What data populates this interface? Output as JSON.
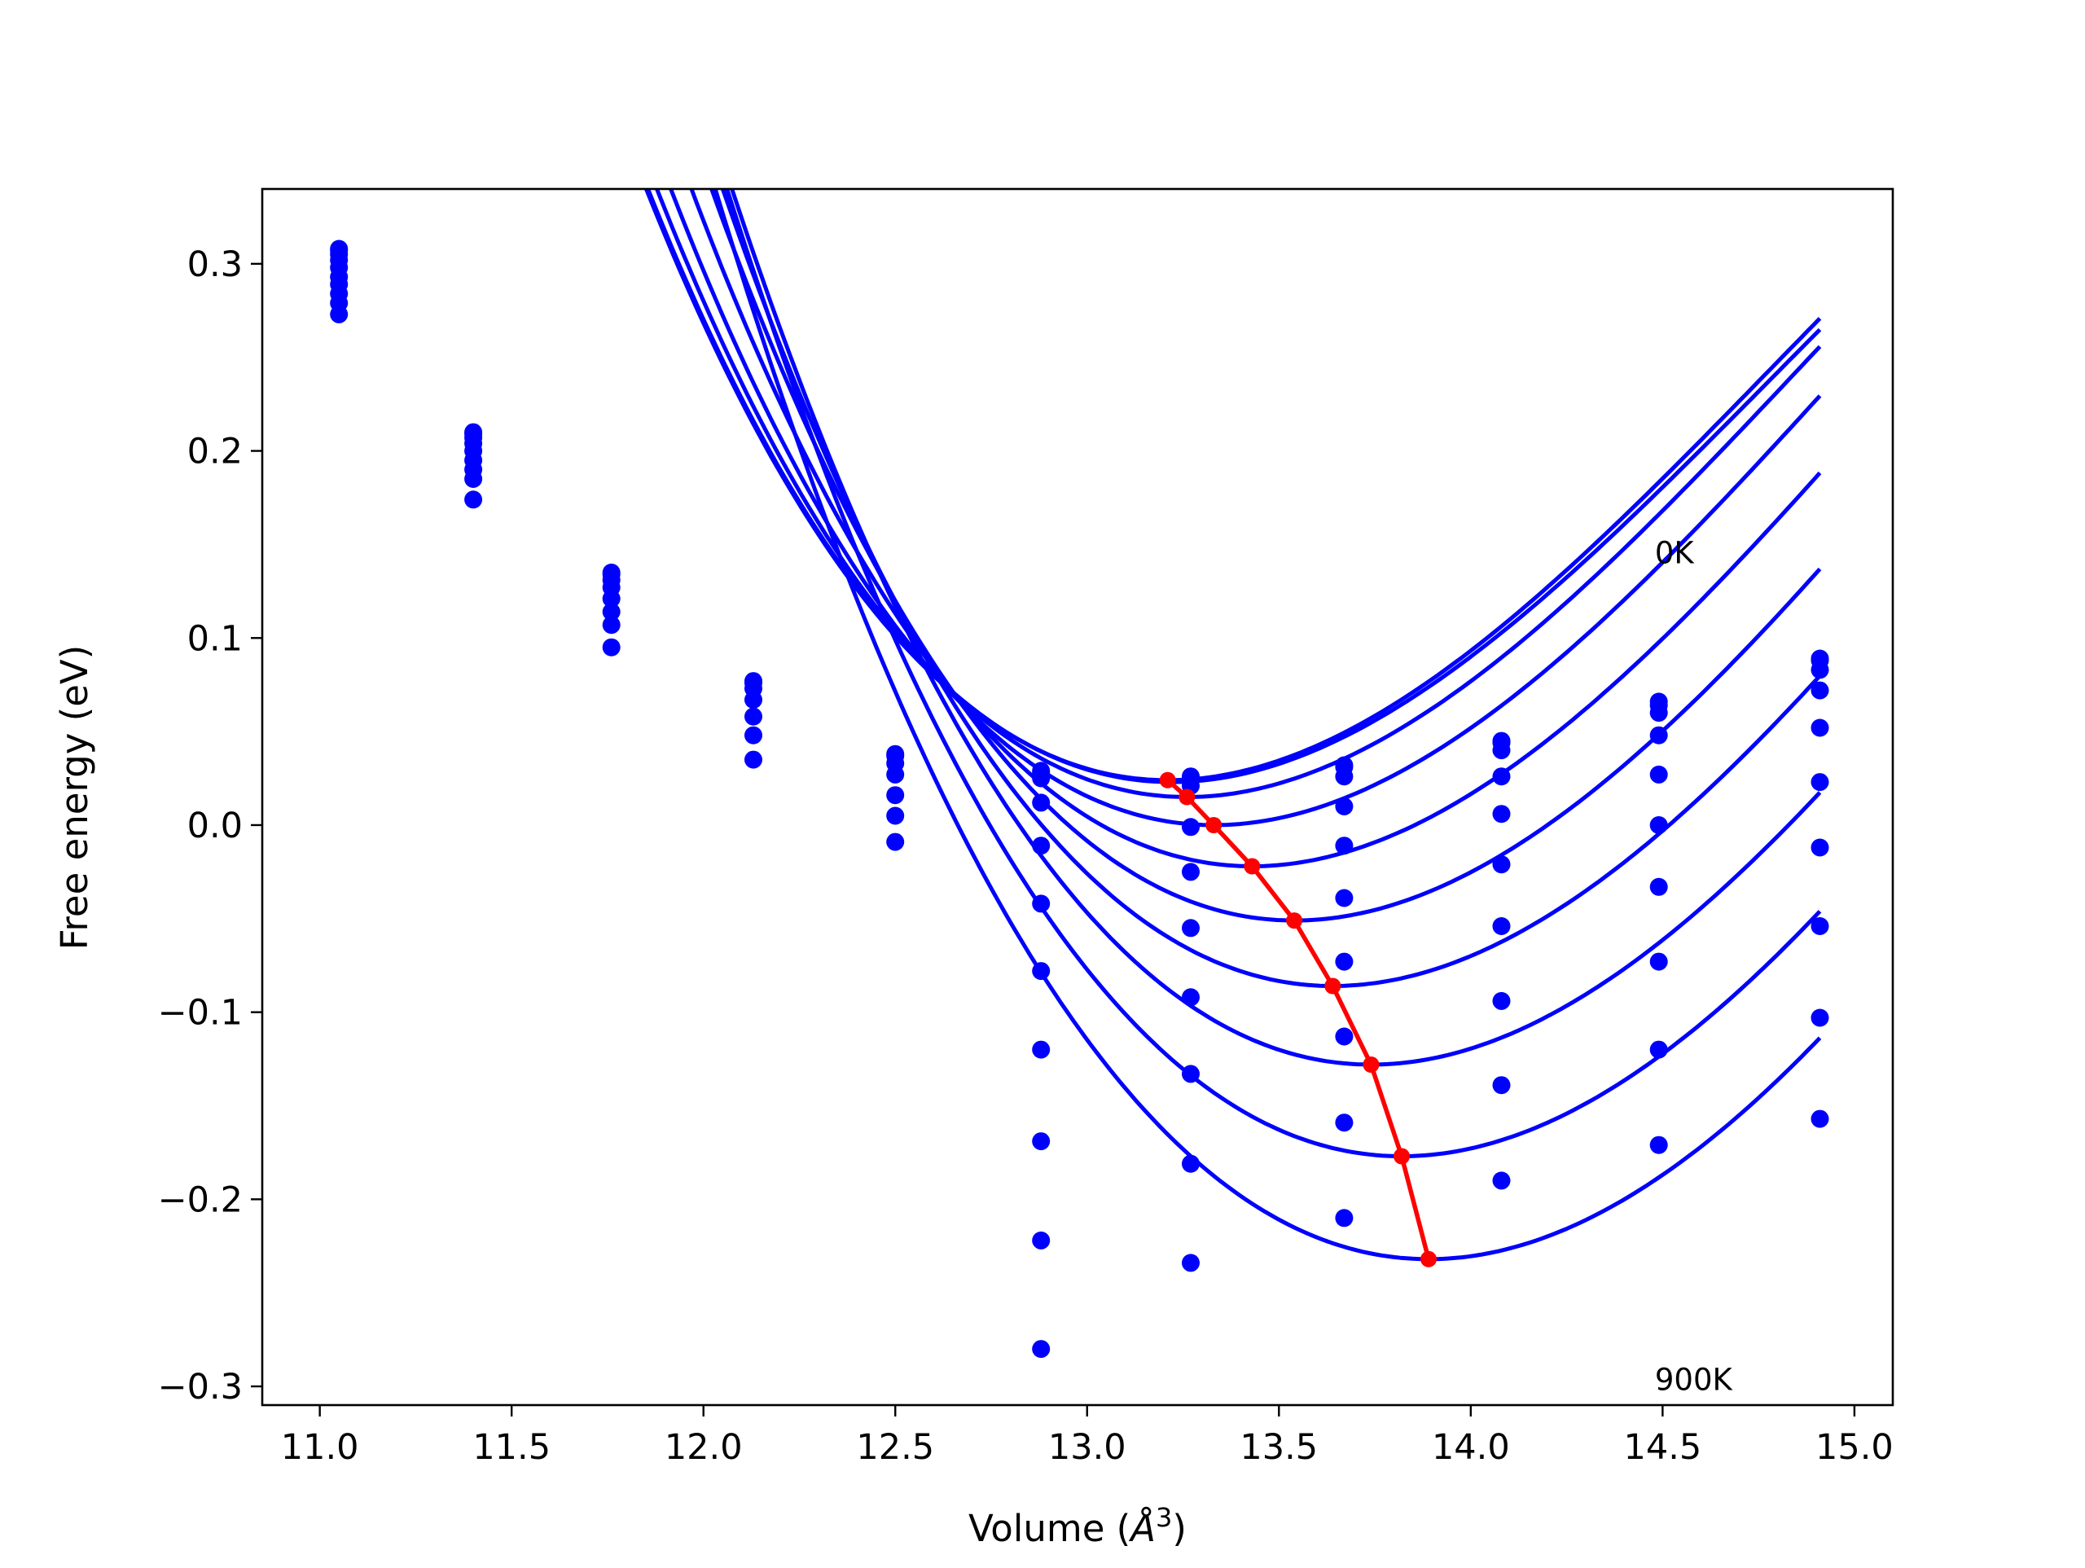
{
  "chart_data": {
    "type": "line",
    "title": "",
    "xlabel": "Volume (Å³)",
    "xlabel_parts": [
      "Volume (",
      "Å",
      "3",
      ")"
    ],
    "ylabel": "Free energy (eV)",
    "xlim": [
      10.85,
      15.1
    ],
    "ylim": [
      -0.31,
      0.34
    ],
    "xticks": [
      11.0,
      11.5,
      12.0,
      12.5,
      13.0,
      13.5,
      14.0,
      14.5,
      15.0
    ],
    "xtick_labels": [
      "11.0",
      "11.5",
      "12.0",
      "12.5",
      "13.0",
      "13.5",
      "14.0",
      "14.5",
      "15.0"
    ],
    "yticks": [
      0.3,
      0.2,
      0.1,
      0.0,
      -0.1,
      -0.2,
      -0.3
    ],
    "ytick_labels": [
      "0.3",
      "0.2",
      "0.1",
      "0.0",
      "−0.1",
      "−0.2",
      "−0.3"
    ],
    "grid": false,
    "legend": "none",
    "annotations": [
      {
        "text": "0K",
        "x": 14.48,
        "y": 0.14
      },
      {
        "text": "900K",
        "x": 14.48,
        "y": -0.302
      }
    ],
    "curve_color": "#0000ff",
    "minimum_line_color": "#ff0000",
    "volumes": [
      11.05,
      11.4,
      11.76,
      12.13,
      12.5,
      12.88,
      13.27,
      13.67,
      14.08,
      14.49,
      14.91
    ],
    "curves": [
      {
        "values": [
          0.308,
          0.21,
          0.135,
          0.077,
          0.038,
          0.029,
          0.026,
          0.032,
          0.045,
          0.066,
          0.089
        ],
        "minimum": [
          13.21,
          0.024
        ]
      },
      {
        "values": [
          0.307,
          0.209,
          0.134,
          0.076,
          0.037,
          0.028,
          0.025,
          0.031,
          0.044,
          0.064,
          0.088
        ],
        "minimum": [
          13.22,
          0.023
        ]
      },
      {
        "values": [
          0.305,
          0.207,
          0.131,
          0.073,
          0.033,
          0.025,
          0.021,
          0.026,
          0.04,
          0.06,
          0.083
        ],
        "minimum": [
          13.26,
          0.015
        ]
      },
      {
        "values": [
          0.302,
          0.204,
          0.127,
          0.067,
          0.027,
          0.012,
          -0.001,
          0.01,
          0.026,
          0.048,
          0.072
        ],
        "minimum": [
          13.33,
          0.0
        ]
      },
      {
        "values": [
          0.298,
          0.2,
          0.121,
          0.058,
          0.016,
          -0.011,
          -0.025,
          -0.011,
          0.006,
          0.027,
          0.052
        ],
        "minimum": [
          13.43,
          -0.022
        ]
      },
      {
        "values": [
          0.293,
          0.195,
          0.114,
          0.048,
          0.005,
          -0.042,
          -0.055,
          -0.039,
          -0.021,
          0.0,
          0.023
        ],
        "minimum": [
          13.54,
          -0.051
        ]
      },
      {
        "values": [
          0.289,
          0.19,
          0.107,
          0.035,
          -0.009,
          -0.078,
          -0.092,
          -0.073,
          -0.054,
          -0.033,
          -0.012
        ],
        "minimum": [
          13.64,
          -0.086
        ]
      },
      {
        "values": [
          0.284,
          0.185,
          0.095,
          null,
          null,
          -0.12,
          -0.133,
          -0.113,
          -0.094,
          -0.073,
          -0.054
        ],
        "minimum": [
          13.74,
          -0.128
        ]
      },
      {
        "values": [
          0.279,
          0.174,
          null,
          null,
          null,
          -0.169,
          -0.181,
          -0.159,
          -0.139,
          -0.12,
          -0.103
        ],
        "minimum": [
          13.82,
          -0.177
        ]
      },
      {
        "values": [
          0.273,
          null,
          null,
          null,
          null,
          -0.222,
          -0.234,
          -0.21,
          -0.19,
          -0.171,
          -0.157
        ],
        "minimum": [
          13.89,
          -0.232
        ]
      },
      {
        "values": [
          null,
          null,
          null,
          null,
          null,
          -0.28,
          null,
          null,
          null,
          null,
          null
        ],
        "minimum": null
      }
    ],
    "fitted_curves": [
      {
        "x0": 13.21,
        "f0": 0.024,
        "a": 0.133,
        "b": -0.028
      },
      {
        "x0": 13.22,
        "f0": 0.023,
        "a": 0.132,
        "b": -0.028
      },
      {
        "x0": 13.26,
        "f0": 0.015,
        "a": 0.133,
        "b": -0.027
      },
      {
        "x0": 13.33,
        "f0": 0.0,
        "a": 0.133,
        "b": -0.026
      },
      {
        "x0": 13.43,
        "f0": -0.022,
        "a": 0.133,
        "b": -0.025
      },
      {
        "x0": 13.54,
        "f0": -0.051,
        "a": 0.133,
        "b": -0.024
      },
      {
        "x0": 13.64,
        "f0": -0.086,
        "a": 0.132,
        "b": -0.023
      },
      {
        "x0": 13.74,
        "f0": -0.128,
        "a": 0.132,
        "b": -0.022
      },
      {
        "x0": 13.82,
        "f0": -0.177,
        "a": 0.132,
        "b": -0.02
      },
      {
        "x0": 13.89,
        "f0": -0.232,
        "a": 0.132,
        "b": -0.018
      }
    ],
    "minimum_path": [
      [
        13.21,
        0.024
      ],
      [
        13.26,
        0.015
      ],
      [
        13.33,
        0.0
      ],
      [
        13.43,
        -0.022
      ],
      [
        13.54,
        -0.051
      ],
      [
        13.64,
        -0.086
      ],
      [
        13.74,
        -0.128
      ],
      [
        13.82,
        -0.177
      ],
      [
        13.89,
        -0.232
      ]
    ]
  }
}
